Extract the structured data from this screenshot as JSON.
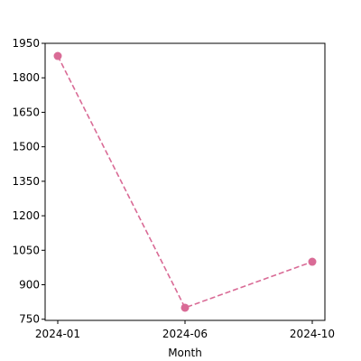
{
  "chart_data": {
    "type": "line",
    "title": "",
    "xlabel": "Month",
    "ylabel": "",
    "x": [
      "2024-01",
      "2024-06",
      "2024-10"
    ],
    "series": [
      {
        "values": [
          1895,
          800,
          1000
        ],
        "color": "#d96b96",
        "line_style": "dashed",
        "marker": "circle"
      }
    ],
    "ylim": [
      745,
      1950
    ],
    "y_ticks": [
      750,
      900,
      1050,
      1200,
      1350,
      1500,
      1650,
      1800,
      1950
    ],
    "x_ticks": [
      "2024-01",
      "2024-06",
      "2024-10"
    ],
    "grid": false,
    "legend": false
  }
}
